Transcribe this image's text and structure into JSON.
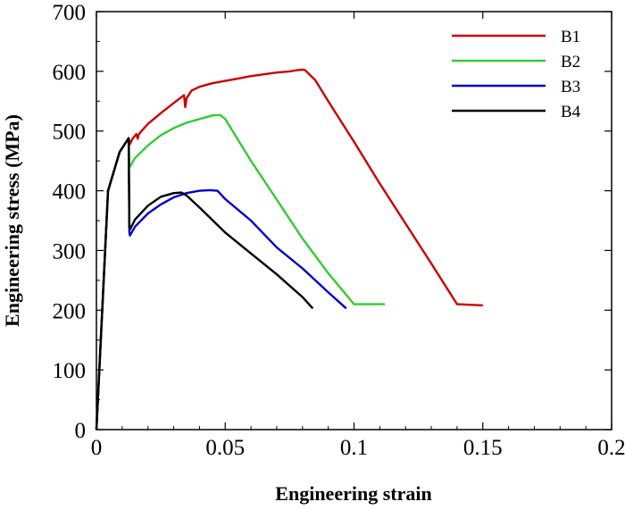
{
  "chart_data": {
    "type": "line",
    "title": "",
    "xlabel": "Engineering strain",
    "ylabel": "Engineering stress (MPa)",
    "xlim": [
      0,
      0.2
    ],
    "ylim": [
      0,
      700
    ],
    "xticks": [
      0,
      0.05,
      0.1,
      0.15,
      0.2
    ],
    "xtick_labels": [
      "0",
      "0.05",
      "0.1",
      "0.15",
      "0.2"
    ],
    "yticks": [
      0,
      100,
      200,
      300,
      400,
      500,
      600,
      700
    ],
    "ytick_labels": [
      "0",
      "100",
      "200",
      "300",
      "400",
      "500",
      "600",
      "700"
    ],
    "grid": false,
    "legend_position": "top-right",
    "series": [
      {
        "name": "B1",
        "color": "#cc0000",
        "x": [
          0,
          0.0045,
          0.009,
          0.0125,
          0.013,
          0.014,
          0.0155,
          0.016,
          0.0165,
          0.0175,
          0.02,
          0.025,
          0.03,
          0.034,
          0.0345,
          0.035,
          0.037,
          0.04,
          0.045,
          0.05,
          0.055,
          0.06,
          0.065,
          0.07,
          0.075,
          0.078,
          0.08,
          0.081,
          0.085,
          0.09,
          0.1,
          0.11,
          0.12,
          0.13,
          0.14,
          0.15
        ],
        "y": [
          0,
          400,
          465,
          488,
          478,
          487,
          495,
          487,
          495,
          500,
          512,
          530,
          547,
          560,
          540,
          555,
          568,
          574,
          580,
          584,
          588,
          592,
          595,
          598,
          600,
          602,
          603,
          602,
          585,
          550,
          482,
          412,
          345,
          278,
          210,
          208
        ]
      },
      {
        "name": "B2",
        "color": "#33cc33",
        "x": [
          0,
          0.0045,
          0.009,
          0.0125,
          0.0128,
          0.013,
          0.015,
          0.02,
          0.025,
          0.03,
          0.035,
          0.04,
          0.045,
          0.048,
          0.05,
          0.06,
          0.07,
          0.08,
          0.09,
          0.1,
          0.11,
          0.112
        ],
        "y": [
          0,
          400,
          465,
          488,
          445,
          440,
          455,
          476,
          493,
          505,
          514,
          520,
          526,
          527,
          520,
          450,
          385,
          320,
          262,
          210,
          210,
          210
        ]
      },
      {
        "name": "B3",
        "color": "#0000cc",
        "x": [
          0,
          0.0045,
          0.009,
          0.0125,
          0.0128,
          0.013,
          0.015,
          0.02,
          0.025,
          0.03,
          0.035,
          0.04,
          0.044,
          0.047,
          0.05,
          0.06,
          0.07,
          0.08,
          0.09,
          0.097
        ],
        "y": [
          0,
          400,
          465,
          488,
          330,
          325,
          340,
          362,
          377,
          389,
          396,
          400,
          401,
          400,
          386,
          350,
          305,
          270,
          230,
          203
        ]
      },
      {
        "name": "B4",
        "color": "#000000",
        "x": [
          0,
          0.0045,
          0.009,
          0.0125,
          0.0128,
          0.013,
          0.015,
          0.02,
          0.025,
          0.03,
          0.033,
          0.035,
          0.04,
          0.05,
          0.06,
          0.07,
          0.08,
          0.084
        ],
        "y": [
          0,
          400,
          465,
          488,
          340,
          335,
          352,
          375,
          390,
          396,
          397,
          392,
          372,
          330,
          295,
          260,
          222,
          203
        ]
      }
    ]
  }
}
